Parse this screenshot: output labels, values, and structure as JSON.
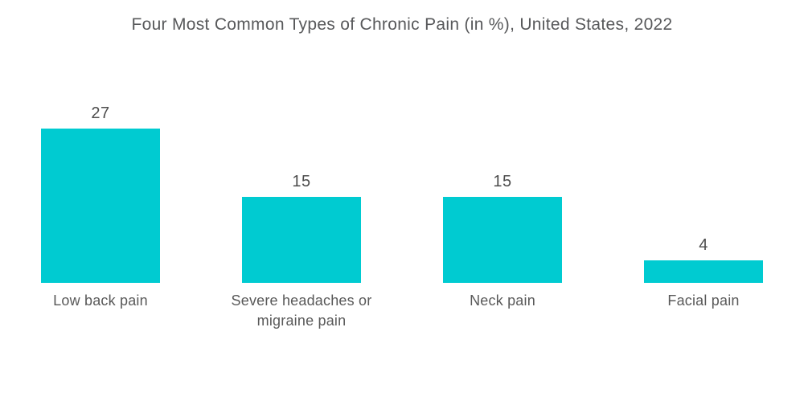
{
  "page": {
    "background": "#ffffff"
  },
  "chart_data": {
    "type": "bar",
    "orientation": "vertical",
    "title": "Four Most Common Types of Chronic Pain (in %), United States, 2022",
    "unit": "%",
    "categories": [
      "Low back pain",
      "Severe headaches or migraine pain",
      "Neck pain",
      "Facial pain"
    ],
    "values": [
      27,
      15,
      15,
      4
    ],
    "value_labels_shown": true,
    "axes_shown": false,
    "grid": false,
    "legend": false,
    "ylim": [
      0,
      27
    ],
    "bar_color": "#00cbd1",
    "title_color": "#58595b",
    "value_label_color": "#4d4d4d",
    "category_label_color": "#595959"
  }
}
